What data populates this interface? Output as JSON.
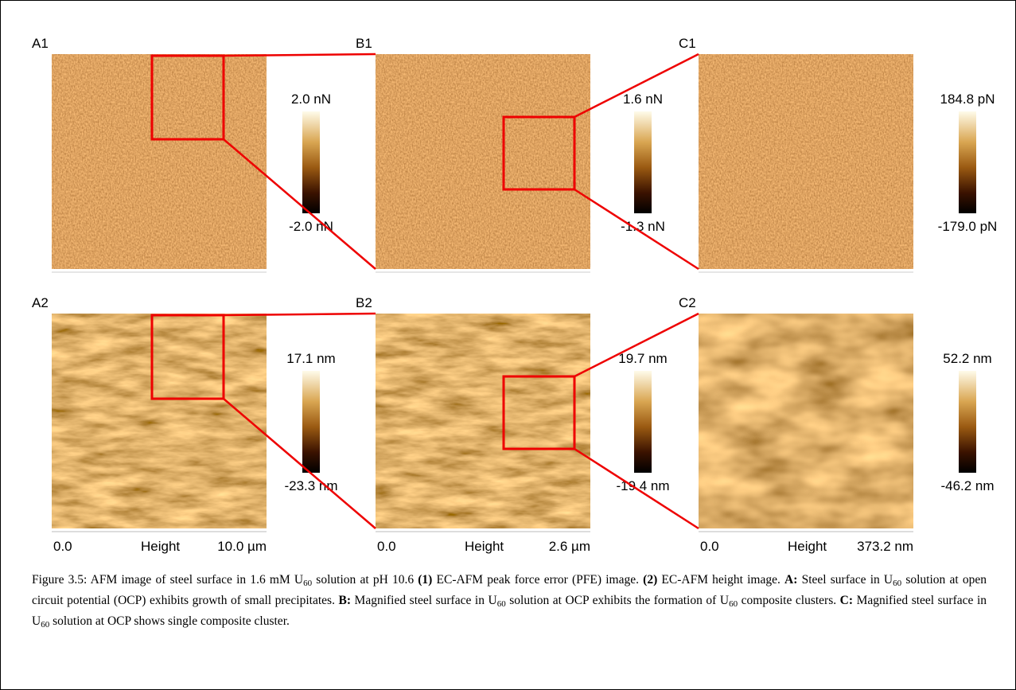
{
  "rows": [
    {
      "panels": [
        {
          "label": "A1",
          "max": "2.0 nN",
          "min": "-2.0 nN"
        },
        {
          "label": "B1",
          "max": "1.6 nN",
          "min": "-1.3 nN"
        },
        {
          "label": "C1",
          "max": "184.8 pN",
          "min": "-179.0 pN"
        }
      ]
    },
    {
      "panels": [
        {
          "label": "A2",
          "max": "17.1 nm",
          "min": "-23.3 nm"
        },
        {
          "label": "B2",
          "max": "19.7 nm",
          "min": "-19.4 nm"
        },
        {
          "label": "C2",
          "max": "52.2 nm",
          "min": "-46.2 nm"
        }
      ]
    }
  ],
  "scales": [
    {
      "start": "0.0",
      "name": "Height",
      "end": "10.0 µm"
    },
    {
      "start": "0.0",
      "name": "Height",
      "end": "2.6 µm"
    },
    {
      "start": "0.0",
      "name": "Height",
      "end": "373.2 nm"
    }
  ],
  "caption": [
    "Figure 3.5: AFM image of steel surface in 1.6 mM U",
    "60",
    " solution at pH 10.6 ",
    "(1)",
    " EC-AFM peak force error (PFE) image. ",
    "(2)",
    " EC-AFM height image. ",
    "A:",
    " Steel surface in U",
    "60",
    " solution at open circuit potential (OCP) exhibits growth of small precipitates. ",
    "B:",
    " Magnified steel surface in U",
    "60",
    " solution at OCP exhibits the formation of U",
    "60",
    " composite clusters. ",
    "C:",
    " Magnified steel surface in U",
    "60",
    " solution at OCP shows single composite cluster."
  ]
}
